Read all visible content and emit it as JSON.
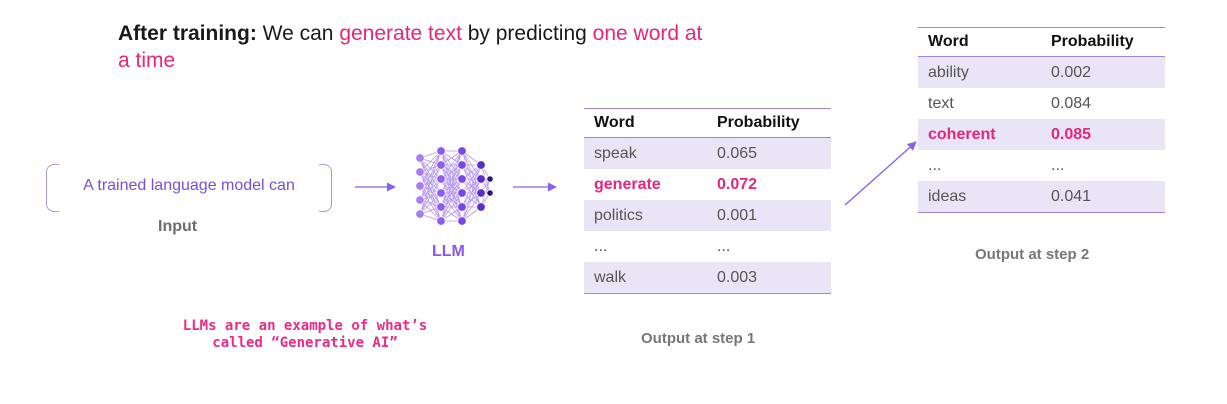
{
  "headline": {
    "bold": "After training:",
    "text1": " We can ",
    "hl1": "generate text",
    "text2": " by predicting ",
    "hl2": "one word at a time"
  },
  "input": {
    "text": "A trained language model can",
    "label": "Input"
  },
  "llm": {
    "label": "LLM"
  },
  "note": {
    "line1": "LLMs are an example of what’s",
    "line2": "called “Generative AI”"
  },
  "table_headers": {
    "word": "Word",
    "probability": "Probability"
  },
  "step1": {
    "caption": "Output at step 1",
    "rows": [
      {
        "word": "speak",
        "prob": "0.065",
        "highlight": false
      },
      {
        "word": "generate",
        "prob": "0.072",
        "highlight": true
      },
      {
        "word": "politics",
        "prob": "0.001",
        "highlight": false
      },
      {
        "word": "...",
        "prob": "...",
        "highlight": false
      },
      {
        "word": "walk",
        "prob": "0.003",
        "highlight": false
      }
    ]
  },
  "step2": {
    "caption": "Output at step 2",
    "rows": [
      {
        "word": "ability",
        "prob": "0.002",
        "highlight": false
      },
      {
        "word": "text",
        "prob": "0.084",
        "highlight": false
      },
      {
        "word": "coherent",
        "prob": "0.085",
        "highlight": true
      },
      {
        "word": "...",
        "prob": "...",
        "highlight": false
      },
      {
        "word": "ideas",
        "prob": "0.041",
        "highlight": false
      }
    ]
  },
  "colors": {
    "accent_pink": "#e5267b",
    "accent_purple": "#8a55f0",
    "row_shade": "#e9e5f7"
  }
}
